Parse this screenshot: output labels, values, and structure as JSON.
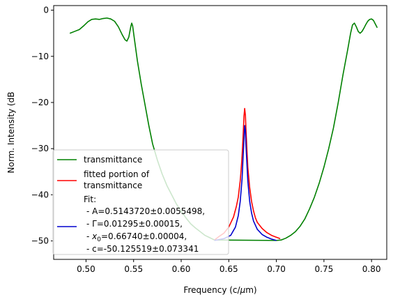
{
  "chart_data": {
    "type": "line",
    "xlabel_prefix": "Frequency (c/",
    "xlabel_mu": "μ",
    "xlabel_suffix": "m)",
    "ylabel": "Norm. Intensity (dB",
    "xlim": [
      0.466,
      0.816
    ],
    "ylim": [
      -54,
      1
    ],
    "xticks": [
      0.5,
      0.55,
      0.6,
      0.65,
      0.7,
      0.75,
      0.8
    ],
    "xtick_labels": [
      "0.50",
      "0.55",
      "0.60",
      "0.65",
      "0.70",
      "0.75",
      "0.80"
    ],
    "yticks": [
      0,
      -10,
      -20,
      -30,
      -40,
      -50
    ],
    "ytick_labels": [
      "0",
      "−10",
      "−20",
      "−30",
      "−40",
      "−50"
    ],
    "grid": false,
    "legend_position": "lower-left",
    "series": [
      {
        "name": "transmittance",
        "color": "#008000",
        "points": [
          [
            0.483,
            -5.0
          ],
          [
            0.488,
            -4.6
          ],
          [
            0.493,
            -4.2
          ],
          [
            0.498,
            -3.3
          ],
          [
            0.502,
            -2.5
          ],
          [
            0.506,
            -2.0
          ],
          [
            0.51,
            -1.9
          ],
          [
            0.514,
            -2.0
          ],
          [
            0.518,
            -1.8
          ],
          [
            0.522,
            -1.7
          ],
          [
            0.526,
            -1.9
          ],
          [
            0.53,
            -2.4
          ],
          [
            0.534,
            -3.6
          ],
          [
            0.538,
            -5.3
          ],
          [
            0.541,
            -6.4
          ],
          [
            0.543,
            -6.7
          ],
          [
            0.545,
            -5.8
          ],
          [
            0.547,
            -3.6
          ],
          [
            0.548,
            -2.8
          ],
          [
            0.549,
            -3.4
          ],
          [
            0.551,
            -6.5
          ],
          [
            0.554,
            -11.0
          ],
          [
            0.558,
            -16.0
          ],
          [
            0.562,
            -20.5
          ],
          [
            0.566,
            -25.0
          ],
          [
            0.57,
            -29.0
          ],
          [
            0.575,
            -32.5
          ],
          [
            0.58,
            -35.5
          ],
          [
            0.585,
            -38.0
          ],
          [
            0.59,
            -40.0
          ],
          [
            0.595,
            -42.0
          ],
          [
            0.6,
            -43.6
          ],
          [
            0.605,
            -45.0
          ],
          [
            0.61,
            -46.3
          ],
          [
            0.615,
            -47.2
          ],
          [
            0.62,
            -48.0
          ],
          [
            0.625,
            -48.8
          ],
          [
            0.63,
            -49.3
          ],
          [
            0.635,
            -49.8
          ],
          [
            0.7,
            -49.9
          ],
          [
            0.705,
            -49.8
          ],
          [
            0.71,
            -49.4
          ],
          [
            0.715,
            -48.8
          ],
          [
            0.72,
            -48.0
          ],
          [
            0.725,
            -46.8
          ],
          [
            0.73,
            -45.2
          ],
          [
            0.735,
            -43.0
          ],
          [
            0.74,
            -40.5
          ],
          [
            0.745,
            -37.5
          ],
          [
            0.75,
            -34.0
          ],
          [
            0.755,
            -30.0
          ],
          [
            0.76,
            -25.5
          ],
          [
            0.765,
            -20.0
          ],
          [
            0.77,
            -14.0
          ],
          [
            0.775,
            -8.5
          ],
          [
            0.778,
            -5.0
          ],
          [
            0.78,
            -3.2
          ],
          [
            0.782,
            -2.8
          ],
          [
            0.784,
            -3.6
          ],
          [
            0.786,
            -4.6
          ],
          [
            0.788,
            -5.0
          ],
          [
            0.79,
            -4.6
          ],
          [
            0.792,
            -3.9
          ],
          [
            0.794,
            -3.1
          ],
          [
            0.796,
            -2.4
          ],
          [
            0.798,
            -2.0
          ],
          [
            0.8,
            -1.9
          ],
          [
            0.802,
            -2.2
          ],
          [
            0.804,
            -3.0
          ],
          [
            0.806,
            -3.8
          ]
        ]
      },
      {
        "name": "fitted portion of transmittance",
        "legend_lines": [
          "fitted portion of",
          "transmittance"
        ],
        "color": "#ff0000",
        "points": [
          [
            0.635,
            -49.8
          ],
          [
            0.64,
            -49.0
          ],
          [
            0.645,
            -48.3
          ],
          [
            0.65,
            -47.0
          ],
          [
            0.655,
            -44.8
          ],
          [
            0.658,
            -42.5
          ],
          [
            0.66,
            -40.5
          ],
          [
            0.662,
            -37.0
          ],
          [
            0.663,
            -34.5
          ],
          [
            0.664,
            -31.5
          ],
          [
            0.665,
            -27.5
          ],
          [
            0.666,
            -23.0
          ],
          [
            0.6667,
            -21.3
          ],
          [
            0.6675,
            -22.8
          ],
          [
            0.668,
            -25.5
          ],
          [
            0.669,
            -30.0
          ],
          [
            0.67,
            -34.0
          ],
          [
            0.672,
            -38.5
          ],
          [
            0.674,
            -41.5
          ],
          [
            0.676,
            -43.5
          ],
          [
            0.678,
            -45.0
          ],
          [
            0.68,
            -46.0
          ],
          [
            0.685,
            -47.3
          ],
          [
            0.69,
            -48.2
          ],
          [
            0.695,
            -48.8
          ],
          [
            0.7,
            -49.2
          ],
          [
            0.704,
            -49.5
          ]
        ]
      },
      {
        "name": "Fit",
        "color": "#0000cd",
        "points": [
          [
            0.635,
            -49.9
          ],
          [
            0.645,
            -49.5
          ],
          [
            0.652,
            -48.8
          ],
          [
            0.657,
            -47.0
          ],
          [
            0.66,
            -44.5
          ],
          [
            0.662,
            -41.5
          ],
          [
            0.664,
            -36.5
          ],
          [
            0.665,
            -32.0
          ],
          [
            0.666,
            -28.0
          ],
          [
            0.6667,
            -25.0
          ],
          [
            0.6675,
            -26.0
          ],
          [
            0.668,
            -29.0
          ],
          [
            0.669,
            -33.0
          ],
          [
            0.67,
            -37.0
          ],
          [
            0.672,
            -41.5
          ],
          [
            0.674,
            -44.0
          ],
          [
            0.676,
            -45.7
          ],
          [
            0.68,
            -47.5
          ],
          [
            0.685,
            -48.6
          ],
          [
            0.69,
            -49.2
          ],
          [
            0.695,
            -49.6
          ],
          [
            0.7,
            -49.9
          ]
        ]
      }
    ],
    "legend": {
      "transmittance_label": "transmittance",
      "fitted_label_line1": "fitted portion of",
      "fitted_label_line2": "transmittance",
      "fit_title": "Fit:",
      "fit_A": "- A=0.5143720±0.0055498,",
      "fit_gamma": "- Γ=0.01295±0.00015,",
      "fit_x0_prefix": "- ",
      "fit_x0_var": "x",
      "fit_x0_sub": "0",
      "fit_x0_rest": "=0.66740±0.00004,",
      "fit_c": "- c=-50.125519±0.073341"
    }
  }
}
